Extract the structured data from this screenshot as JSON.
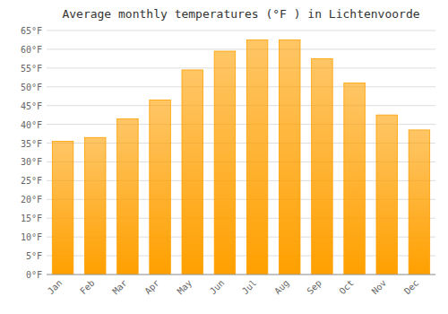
{
  "chart_data": {
    "type": "bar",
    "title": "Average monthly temperatures (°F ) in Lichtenvoorde",
    "categories": [
      "Jan",
      "Feb",
      "Mar",
      "Apr",
      "May",
      "Jun",
      "Jul",
      "Aug",
      "Sep",
      "Oct",
      "Nov",
      "Dec"
    ],
    "values": [
      35.5,
      36.5,
      41.5,
      46.5,
      54.5,
      59.5,
      62.5,
      62.5,
      57.5,
      51.0,
      42.5,
      38.5
    ],
    "color": "#FFA000",
    "ylim": [
      0,
      65
    ],
    "yticks": [
      {
        "value": 0,
        "label": "0°F"
      },
      {
        "value": 5,
        "label": "5°F"
      },
      {
        "value": 10,
        "label": "10°F"
      },
      {
        "value": 15,
        "label": "15°F"
      },
      {
        "value": 20,
        "label": "20°F"
      },
      {
        "value": 25,
        "label": "25°F"
      },
      {
        "value": 30,
        "label": "30°F"
      },
      {
        "value": 35,
        "label": "35°F"
      },
      {
        "value": 40,
        "label": "40°F"
      },
      {
        "value": 45,
        "label": "45°F"
      },
      {
        "value": 50,
        "label": "50°F"
      },
      {
        "value": 55,
        "label": "55°F"
      },
      {
        "value": 60,
        "label": "60°F"
      },
      {
        "value": 65,
        "label": "65°F"
      }
    ],
    "grid": true
  }
}
